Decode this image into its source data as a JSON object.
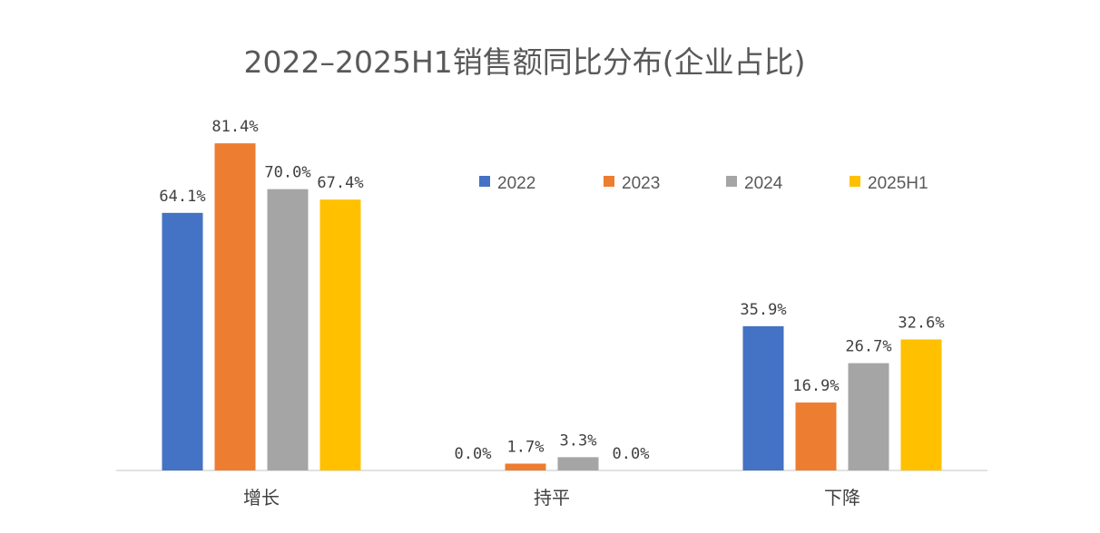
{
  "chart_data": {
    "type": "bar",
    "title": "2022–2025H1销售额同比分布(企业占比)",
    "categories": [
      "增长",
      "持平",
      "下降"
    ],
    "series": [
      {
        "name": "2022",
        "color": "#4472C4",
        "values": [
          64.1,
          0.0,
          35.9
        ],
        "labels": [
          "64.1%",
          "0.0%",
          "35.9%"
        ]
      },
      {
        "name": "2023",
        "color": "#ED7D31",
        "values": [
          81.4,
          1.7,
          16.9
        ],
        "labels": [
          "81.4%",
          "1.7%",
          "16.9%"
        ]
      },
      {
        "name": "2024",
        "color": "#A5A5A5",
        "values": [
          70.0,
          3.3,
          26.7
        ],
        "labels": [
          "70.0%",
          "3.3%",
          "26.7%"
        ]
      },
      {
        "name": "2025H1",
        "color": "#FFC000",
        "values": [
          67.4,
          0.0,
          32.6
        ],
        "labels": [
          "67.4%",
          "0.0%",
          "32.6%"
        ]
      }
    ],
    "unit": "%",
    "ylim": [
      0,
      90
    ],
    "grid": false,
    "y_axis_visible": false,
    "legend_position": "top-right"
  }
}
